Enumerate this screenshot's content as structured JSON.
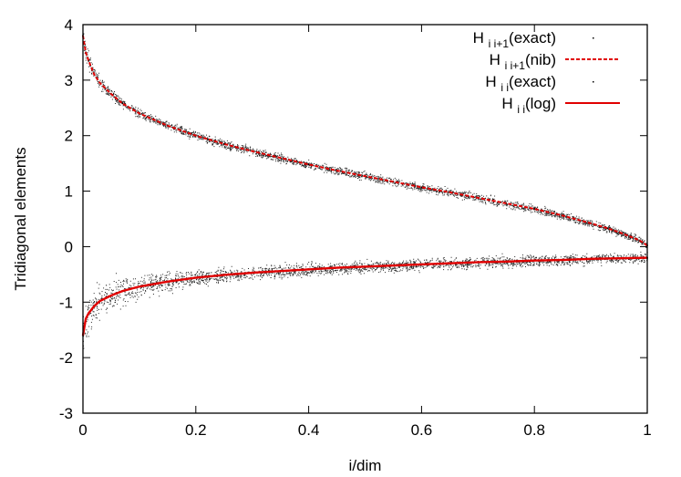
{
  "chart_data": {
    "type": "scatter",
    "title": "",
    "xlabel": "i/dim",
    "ylabel": "Tridiagonal elements",
    "xlim": [
      0,
      1
    ],
    "ylim": [
      -3,
      4
    ],
    "grid": false,
    "legend_position": "top-right",
    "x_ticks": [
      "0",
      "0.2",
      "0.4",
      "0.6",
      "0.8",
      "1"
    ],
    "y_ticks": [
      "-3",
      "-2",
      "-1",
      "0",
      "1",
      "2",
      "3",
      "4"
    ],
    "legend": [
      {
        "base": "H",
        "sub": "i i+1",
        "suffix": "(exact)",
        "style": "dots",
        "color": "#000000"
      },
      {
        "base": "H",
        "sub": "i i+1",
        "suffix": "(nib)",
        "style": "dashed",
        "color": "#e00000"
      },
      {
        "base": "H",
        "sub": "i i",
        "suffix": "(exact)",
        "style": "dots",
        "color": "#000000"
      },
      {
        "base": "H",
        "sub": "i i",
        "suffix": "(log)",
        "style": "solid",
        "color": "#e00000"
      }
    ],
    "series": [
      {
        "name": "Hi i+1(exact)",
        "style": "dots",
        "color": "#000000",
        "x": [
          0.0,
          0.005,
          0.01,
          0.02,
          0.03,
          0.05,
          0.07,
          0.1,
          0.15,
          0.2,
          0.25,
          0.3,
          0.35,
          0.4,
          0.45,
          0.5,
          0.55,
          0.6,
          0.65,
          0.7,
          0.75,
          0.8,
          0.85,
          0.9,
          0.93,
          0.95,
          0.97,
          0.98,
          0.99,
          1.0
        ],
        "y": [
          3.8,
          3.5,
          3.35,
          3.1,
          2.95,
          2.75,
          2.58,
          2.4,
          2.18,
          2.0,
          1.85,
          1.72,
          1.6,
          1.48,
          1.37,
          1.27,
          1.17,
          1.07,
          0.98,
          0.88,
          0.78,
          0.68,
          0.56,
          0.42,
          0.33,
          0.26,
          0.18,
          0.14,
          0.09,
          0.02
        ]
      },
      {
        "name": "Hi i+1(nib)",
        "style": "dashed",
        "color": "#e00000",
        "x": [
          0.0,
          0.005,
          0.01,
          0.02,
          0.03,
          0.05,
          0.07,
          0.1,
          0.15,
          0.2,
          0.25,
          0.3,
          0.35,
          0.4,
          0.45,
          0.5,
          0.55,
          0.6,
          0.65,
          0.7,
          0.75,
          0.8,
          0.85,
          0.9,
          0.93,
          0.95,
          0.97,
          0.98,
          0.99,
          1.0
        ],
        "y": [
          3.8,
          3.5,
          3.35,
          3.1,
          2.95,
          2.75,
          2.58,
          2.4,
          2.18,
          2.0,
          1.85,
          1.72,
          1.6,
          1.48,
          1.37,
          1.27,
          1.17,
          1.07,
          0.98,
          0.88,
          0.78,
          0.68,
          0.56,
          0.42,
          0.33,
          0.26,
          0.18,
          0.14,
          0.09,
          0.02
        ]
      },
      {
        "name": "Hi i(exact)",
        "style": "dots",
        "color": "#000000",
        "x": [
          0.0,
          0.005,
          0.01,
          0.02,
          0.03,
          0.05,
          0.07,
          0.1,
          0.15,
          0.2,
          0.25,
          0.3,
          0.35,
          0.4,
          0.45,
          0.5,
          0.55,
          0.6,
          0.65,
          0.7,
          0.75,
          0.8,
          0.85,
          0.9,
          0.95,
          1.0
        ],
        "y": [
          -1.6,
          -1.3,
          -1.2,
          -1.07,
          -0.98,
          -0.88,
          -0.8,
          -0.72,
          -0.63,
          -0.56,
          -0.51,
          -0.47,
          -0.44,
          -0.41,
          -0.38,
          -0.36,
          -0.34,
          -0.32,
          -0.3,
          -0.28,
          -0.27,
          -0.25,
          -0.24,
          -0.22,
          -0.21,
          -0.2
        ]
      },
      {
        "name": "Hi i(log)",
        "style": "solid",
        "color": "#e00000",
        "x": [
          0.0,
          0.005,
          0.01,
          0.02,
          0.03,
          0.05,
          0.07,
          0.1,
          0.15,
          0.2,
          0.25,
          0.3,
          0.35,
          0.4,
          0.45,
          0.5,
          0.55,
          0.6,
          0.65,
          0.7,
          0.75,
          0.8,
          0.85,
          0.9,
          0.95,
          1.0
        ],
        "y": [
          -1.6,
          -1.3,
          -1.2,
          -1.07,
          -0.98,
          -0.88,
          -0.8,
          -0.72,
          -0.63,
          -0.56,
          -0.51,
          -0.47,
          -0.44,
          -0.41,
          -0.38,
          -0.36,
          -0.34,
          -0.32,
          -0.3,
          -0.28,
          -0.27,
          -0.25,
          -0.24,
          -0.22,
          -0.21,
          -0.2
        ]
      }
    ]
  }
}
